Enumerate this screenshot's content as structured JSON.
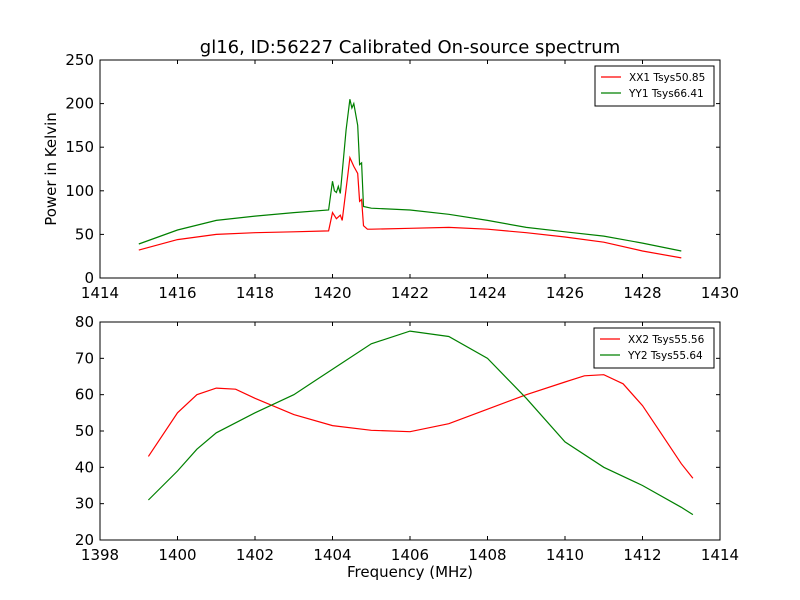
{
  "chart_data": [
    {
      "type": "line",
      "title": "gl16, ID:56227 Calibrated On-source spectrum",
      "xlabel": "",
      "ylabel": "Power in Kelvin",
      "xlim": [
        1414,
        1430
      ],
      "ylim": [
        0,
        250
      ],
      "xticks": [
        1414,
        1416,
        1418,
        1420,
        1422,
        1424,
        1426,
        1428,
        1430
      ],
      "yticks": [
        0,
        50,
        100,
        150,
        200,
        250
      ],
      "legend": "top-right",
      "series": [
        {
          "name": "XX1 Tsys50.85",
          "color": "#ff0000",
          "x": [
            1415,
            1416,
            1417,
            1418,
            1419,
            1419.9,
            1420,
            1420.1,
            1420.2,
            1420.25,
            1420.4,
            1420.45,
            1420.55,
            1420.65,
            1420.7,
            1420.75,
            1420.8,
            1420.9,
            1421,
            1422,
            1423,
            1424,
            1425,
            1426,
            1427,
            1428,
            1429
          ],
          "y": [
            32,
            44,
            50,
            52,
            53,
            54,
            75,
            68,
            72,
            66,
            120,
            138,
            128,
            120,
            88,
            90,
            60,
            56,
            56,
            57,
            58,
            56,
            52,
            47,
            41,
            31,
            23
          ]
        },
        {
          "name": "YY1 Tsys66.41",
          "color": "#008000",
          "x": [
            1415,
            1416,
            1417,
            1418,
            1419,
            1419.9,
            1420,
            1420.05,
            1420.1,
            1420.15,
            1420.2,
            1420.35,
            1420.45,
            1420.5,
            1420.55,
            1420.65,
            1420.7,
            1420.75,
            1420.8,
            1421,
            1422,
            1423,
            1424,
            1425,
            1426,
            1427,
            1428,
            1429
          ],
          "y": [
            39,
            55,
            66,
            71,
            75,
            78,
            111,
            100,
            98,
            105,
            97,
            170,
            205,
            195,
            200,
            175,
            130,
            132,
            82,
            80,
            78,
            73,
            66,
            58,
            53,
            48,
            40,
            31
          ]
        }
      ]
    },
    {
      "type": "line",
      "title": "",
      "xlabel": "Frequency (MHz)",
      "ylabel": "",
      "xlim": [
        1398,
        1414
      ],
      "ylim": [
        20,
        80
      ],
      "xticks": [
        1398,
        1400,
        1402,
        1404,
        1406,
        1408,
        1410,
        1412,
        1414
      ],
      "yticks": [
        20,
        30,
        40,
        50,
        60,
        70,
        80
      ],
      "legend": "top-right",
      "series": [
        {
          "name": "XX2 Tsys55.56",
          "color": "#ff0000",
          "x": [
            1399.25,
            1400,
            1400.5,
            1401,
            1401.5,
            1402,
            1403,
            1404,
            1405,
            1406,
            1407,
            1408,
            1409,
            1410,
            1410.5,
            1411,
            1411.5,
            1412,
            1412.5,
            1413,
            1413.3
          ],
          "y": [
            43,
            55,
            60,
            61.8,
            61.5,
            59,
            54.5,
            51.5,
            50.2,
            49.8,
            52,
            56,
            60,
            63.5,
            65.2,
            65.5,
            63,
            57,
            49,
            41,
            37
          ]
        },
        {
          "name": "YY2 Tsys55.64",
          "color": "#008000",
          "x": [
            1399.25,
            1400,
            1400.5,
            1401,
            1402,
            1403,
            1404,
            1405,
            1406,
            1407,
            1408,
            1409,
            1410,
            1411,
            1412,
            1413,
            1413.3
          ],
          "y": [
            31,
            39,
            45,
            49.5,
            55,
            60,
            67,
            74,
            77.5,
            76,
            70,
            59,
            47,
            40,
            35,
            29,
            27
          ]
        }
      ]
    }
  ]
}
